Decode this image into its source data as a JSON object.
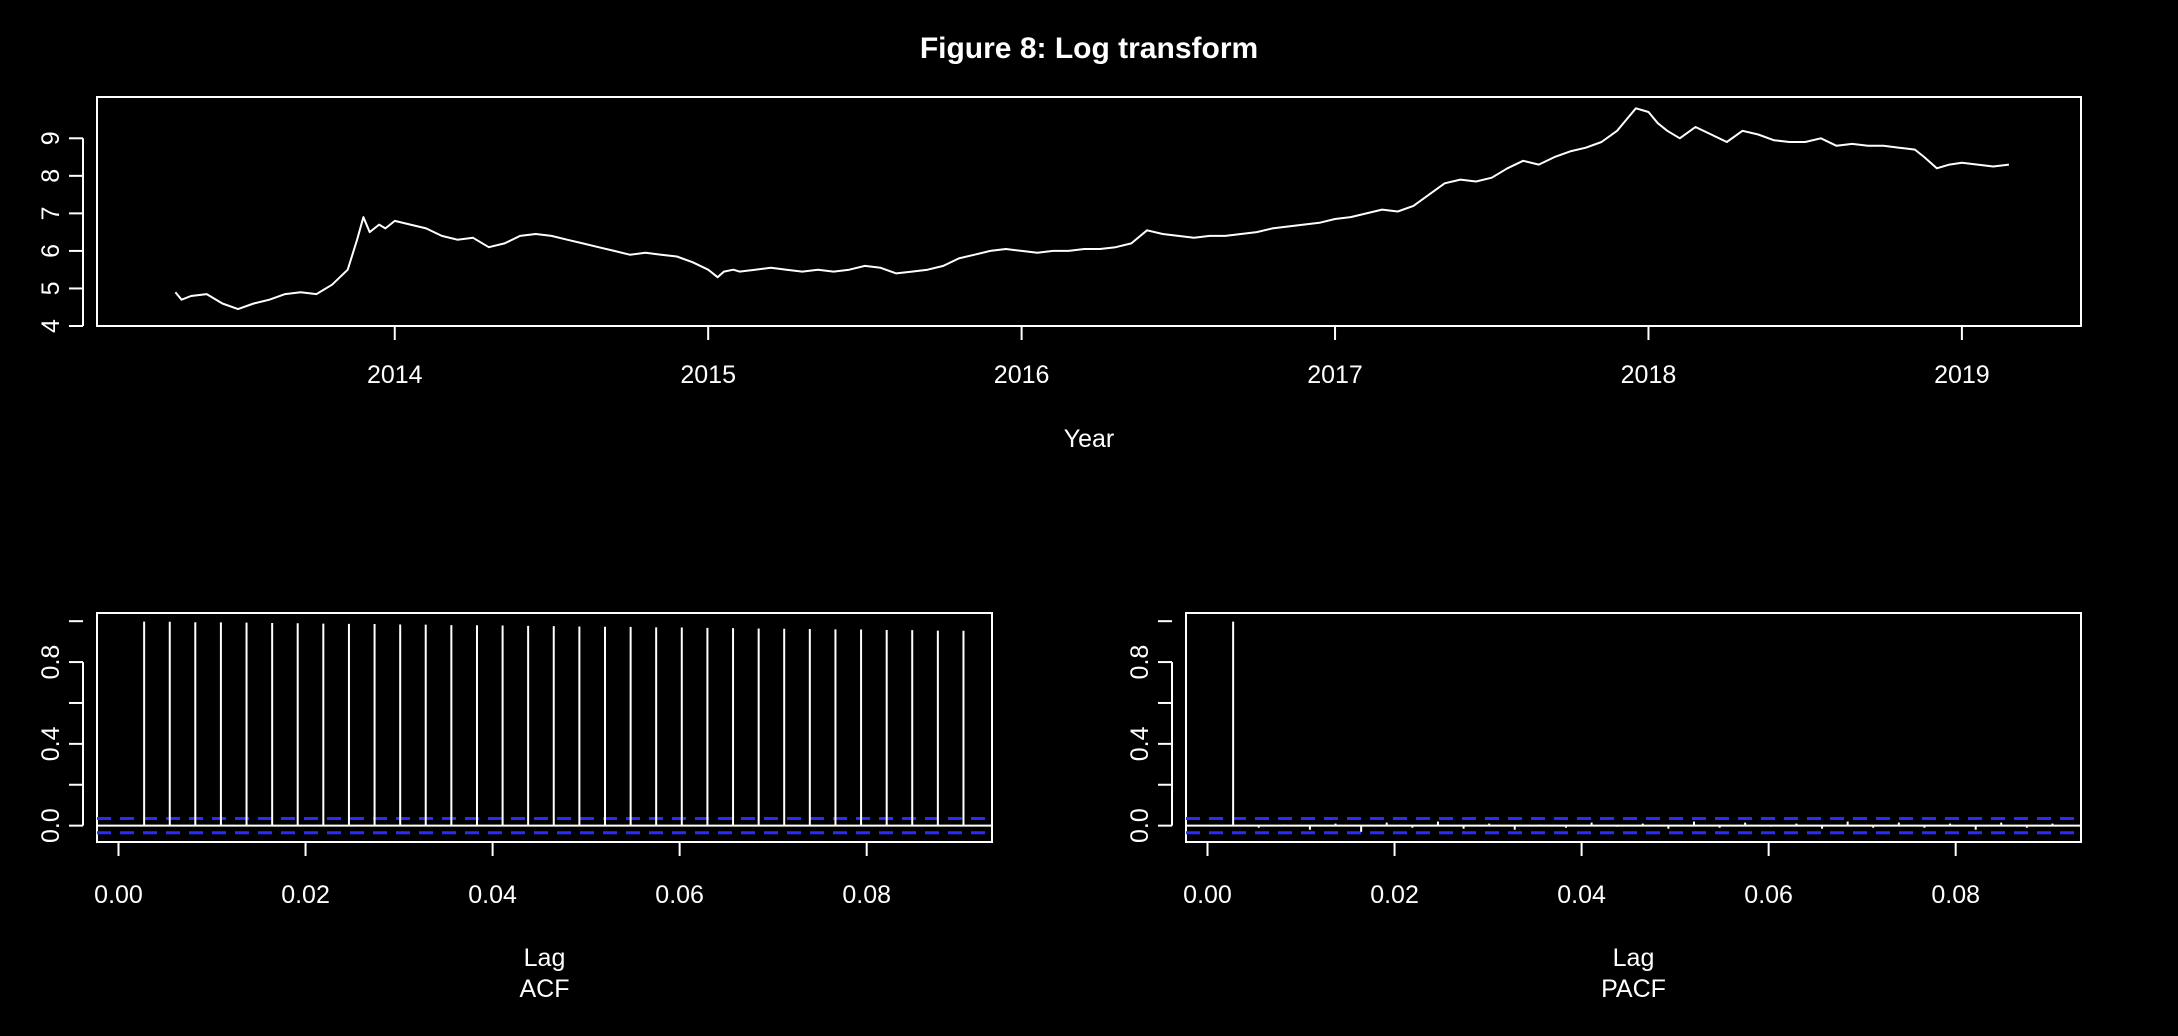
{
  "figure_title": "Figure  8: Log transform",
  "colors": {
    "background": "#000000",
    "foreground": "#ffffff",
    "confidence_band": "#2b2bff"
  },
  "chart_data": [
    {
      "type": "line",
      "title": "Figure  8: Log transform",
      "xlabel": "Year",
      "ylabel": "",
      "xlim": [
        2013.05,
        2019.38
      ],
      "ylim": [
        4,
        10.1
      ],
      "xticks": [
        2014,
        2015,
        2016,
        2017,
        2018,
        2019
      ],
      "xtick_labels": [
        "2014",
        "2015",
        "2016",
        "2017",
        "2018",
        "2019"
      ],
      "yticks": [
        4,
        5,
        6,
        7,
        8,
        9
      ],
      "ytick_labels": [
        "4",
        "5",
        "6",
        "7",
        "8",
        "9"
      ],
      "series": [
        {
          "x": [
            2013.3,
            2013.32,
            2013.35,
            2013.4,
            2013.45,
            2013.5,
            2013.55,
            2013.6,
            2013.65,
            2013.7,
            2013.75,
            2013.8,
            2013.85,
            2013.88,
            2013.9,
            2013.92,
            2013.95,
            2013.97,
            2014.0,
            2014.05,
            2014.1,
            2014.15,
            2014.2,
            2014.25,
            2014.3,
            2014.35,
            2014.4,
            2014.45,
            2014.5,
            2014.55,
            2014.6,
            2014.65,
            2014.7,
            2014.75,
            2014.8,
            2014.85,
            2014.9,
            2014.95,
            2015.0,
            2015.03,
            2015.05,
            2015.08,
            2015.1,
            2015.15,
            2015.2,
            2015.25,
            2015.3,
            2015.35,
            2015.4,
            2015.45,
            2015.5,
            2015.55,
            2015.6,
            2015.65,
            2015.7,
            2015.75,
            2015.8,
            2015.85,
            2015.9,
            2015.95,
            2016.0,
            2016.05,
            2016.1,
            2016.15,
            2016.2,
            2016.25,
            2016.3,
            2016.35,
            2016.4,
            2016.45,
            2016.5,
            2016.55,
            2016.6,
            2016.65,
            2016.7,
            2016.75,
            2016.8,
            2016.85,
            2016.9,
            2016.95,
            2017.0,
            2017.05,
            2017.1,
            2017.15,
            2017.2,
            2017.25,
            2017.3,
            2017.35,
            2017.4,
            2017.45,
            2017.5,
            2017.55,
            2017.6,
            2017.65,
            2017.7,
            2017.75,
            2017.8,
            2017.85,
            2017.9,
            2017.93,
            2017.96,
            2018.0,
            2018.03,
            2018.06,
            2018.1,
            2018.15,
            2018.2,
            2018.25,
            2018.3,
            2018.35,
            2018.4,
            2018.45,
            2018.5,
            2018.55,
            2018.6,
            2018.65,
            2018.7,
            2018.75,
            2018.8,
            2018.85,
            2018.88,
            2018.92,
            2018.96,
            2019.0,
            2019.05,
            2019.1,
            2019.15
          ],
          "y": [
            4.9,
            4.7,
            4.8,
            4.85,
            4.6,
            4.45,
            4.6,
            4.7,
            4.85,
            4.9,
            4.85,
            5.1,
            5.5,
            6.3,
            6.9,
            6.5,
            6.7,
            6.6,
            6.8,
            6.7,
            6.6,
            6.4,
            6.3,
            6.35,
            6.1,
            6.2,
            6.4,
            6.45,
            6.4,
            6.3,
            6.2,
            6.1,
            6.0,
            5.9,
            5.95,
            5.9,
            5.85,
            5.7,
            5.5,
            5.3,
            5.45,
            5.5,
            5.45,
            5.5,
            5.55,
            5.5,
            5.45,
            5.5,
            5.45,
            5.5,
            5.6,
            5.55,
            5.4,
            5.45,
            5.5,
            5.6,
            5.8,
            5.9,
            6.0,
            6.05,
            6.0,
            5.95,
            6.0,
            6.0,
            6.05,
            6.05,
            6.1,
            6.2,
            6.55,
            6.45,
            6.4,
            6.35,
            6.4,
            6.4,
            6.45,
            6.5,
            6.6,
            6.65,
            6.7,
            6.75,
            6.85,
            6.9,
            7.0,
            7.1,
            7.05,
            7.2,
            7.5,
            7.8,
            7.9,
            7.85,
            7.95,
            8.2,
            8.4,
            8.3,
            8.5,
            8.65,
            8.75,
            8.9,
            9.2,
            9.5,
            9.8,
            9.7,
            9.4,
            9.2,
            9.0,
            9.3,
            9.1,
            8.9,
            9.2,
            9.1,
            8.95,
            8.9,
            8.9,
            9.0,
            8.8,
            8.85,
            8.8,
            8.8,
            8.75,
            8.7,
            8.5,
            8.2,
            8.3,
            8.35,
            8.3,
            8.25,
            8.3
          ]
        }
      ]
    },
    {
      "type": "bar",
      "title": "",
      "xlabel": "Lag",
      "ylabel": "ACF",
      "xlim": [
        -0.0023,
        0.0934
      ],
      "ylim": [
        -0.08,
        1.04
      ],
      "xticks": [
        0.0,
        0.02,
        0.04,
        0.06,
        0.08
      ],
      "xtick_labels": [
        "0.00",
        "0.02",
        "0.04",
        "0.06",
        "0.08"
      ],
      "yticks": [
        0.0,
        0.4,
        0.8
      ],
      "ytick_labels": [
        "0.0",
        "0.4",
        "0.8"
      ],
      "confidence_band": 0.035,
      "lags": [
        0.00274,
        0.00548,
        0.00821,
        0.01095,
        0.01369,
        0.01643,
        0.01916,
        0.0219,
        0.02464,
        0.02738,
        0.03012,
        0.03285,
        0.03559,
        0.03833,
        0.04107,
        0.0438,
        0.04654,
        0.04928,
        0.05202,
        0.05476,
        0.05749,
        0.06023,
        0.06297,
        0.06571,
        0.06845,
        0.07118,
        0.07392,
        0.07666,
        0.0794,
        0.08214,
        0.08487,
        0.08761,
        0.09035
      ],
      "values": [
        0.998,
        0.997,
        0.995,
        0.994,
        0.993,
        0.991,
        0.99,
        0.988,
        0.987,
        0.986,
        0.984,
        0.983,
        0.981,
        0.98,
        0.979,
        0.977,
        0.976,
        0.974,
        0.973,
        0.972,
        0.97,
        0.969,
        0.967,
        0.966,
        0.964,
        0.963,
        0.962,
        0.96,
        0.959,
        0.957,
        0.956,
        0.954,
        0.953
      ]
    },
    {
      "type": "bar",
      "title": "",
      "xlabel": "Lag",
      "ylabel": "PACF",
      "xlim": [
        -0.0023,
        0.0934
      ],
      "ylim": [
        -0.08,
        1.04
      ],
      "xticks": [
        0.0,
        0.02,
        0.04,
        0.06,
        0.08
      ],
      "xtick_labels": [
        "0.00",
        "0.02",
        "0.04",
        "0.06",
        "0.08"
      ],
      "yticks": [
        0.0,
        0.4,
        0.8
      ],
      "ytick_labels": [
        "0.0",
        "0.4",
        "0.8"
      ],
      "confidence_band": 0.035,
      "lags": [
        0.00274,
        0.00548,
        0.00821,
        0.01095,
        0.01369,
        0.01643,
        0.01916,
        0.0219,
        0.02464,
        0.02738,
        0.03012,
        0.03285,
        0.03559,
        0.03833,
        0.04107,
        0.0438,
        0.04654,
        0.04928,
        0.05202,
        0.05476,
        0.05749,
        0.06023,
        0.06297,
        0.06571,
        0.06845,
        0.07118,
        0.07392,
        0.07666,
        0.0794,
        0.08214,
        0.08487,
        0.08761,
        0.09035
      ],
      "values": [
        0.998,
        -0.01,
        0.005,
        -0.02,
        0.01,
        -0.03,
        0.015,
        -0.01,
        0.02,
        -0.015,
        0.01,
        -0.02,
        0.005,
        -0.01,
        0.015,
        -0.005,
        0.01,
        -0.015,
        0.02,
        -0.01,
        0.015,
        -0.005,
        0.01,
        -0.015,
        0.02,
        -0.01,
        0.015,
        -0.01,
        0.01,
        -0.02,
        0.015,
        -0.01,
        0.01
      ]
    }
  ]
}
